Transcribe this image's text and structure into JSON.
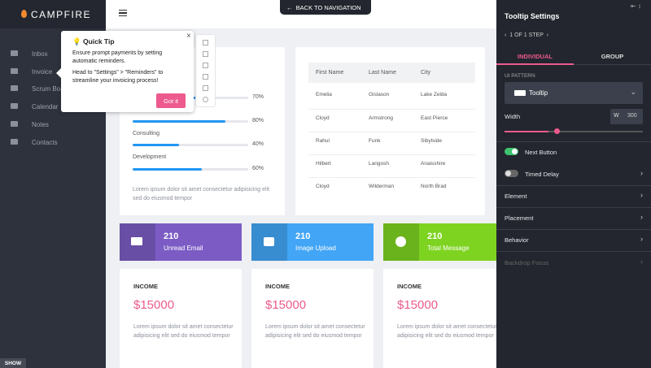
{
  "sidebar": {
    "brand": "CAMPFIRE",
    "menu": [
      "Inbox",
      "Invoice",
      "Scrum Board",
      "Calendar",
      "Notes",
      "Contacts"
    ],
    "show_button": "SHOW"
  },
  "header": {
    "back_button": "BACK TO NAVIGATION"
  },
  "skills": {
    "items": [
      {
        "value": 70,
        "value_label": "70%"
      },
      {
        "value": 80,
        "value_label": "80%"
      },
      {
        "label": "Consulting",
        "value": 40,
        "value_label": "40%"
      },
      {
        "label": "Development",
        "value": 60,
        "value_label": "60%"
      }
    ],
    "text": "Lorem ipsum dolor sit amet consectetur adipisicing elit sed do eiusmod tempor"
  },
  "table": {
    "columns": [
      "First Name",
      "Last Name",
      "City"
    ],
    "rows": [
      [
        "Emelia",
        "Gislason",
        "Lake Zelda"
      ],
      [
        "Cloyd",
        "Armstrong",
        "East Pierce"
      ],
      [
        "Rahul",
        "Funk",
        "Sibylside"
      ],
      [
        "Hilbert",
        "Langosh",
        "Anaisshire"
      ],
      [
        "Cloyd",
        "Wilderman",
        "North Brad"
      ]
    ]
  },
  "stats": [
    {
      "value": 210,
      "label": "Unread Email"
    },
    {
      "value": 210,
      "label": "Image Upload"
    },
    {
      "value": 210,
      "label": "Total Message"
    }
  ],
  "income_cards": [
    {
      "title": "INCOME",
      "amount": "$15000",
      "text": "Lorem ipsum dolor sit amet consectetur adipisicing elit sed do eiusmod tempor"
    },
    {
      "title": "INCOME",
      "amount": "$15000",
      "text": "Lorem ipsum dolor sit amet consectetur adipisicing elit sed do eiusmod tempor"
    },
    {
      "title": "INCOME",
      "amount": "$15000",
      "text": "Lorem ipsum dolor sit amet consectetur adipisicing elit sed do eiusmod tempor"
    }
  ],
  "tooltip": {
    "title": "Quick Tip",
    "lines": [
      "Ensure prompt payments by setting automatic reminders.",
      "Head to \"Settings\" > \"Reminders\" to streamline your invoicing process!"
    ],
    "button": "Got it"
  },
  "panel": {
    "title": "Tooltip Settings",
    "step": "1 OF 1 STEP",
    "tabs": [
      "INDIVIDUAL",
      "GROUP"
    ],
    "ui_pattern_label": "UI PATTERN",
    "ui_pattern": "Tooltip",
    "width_label": "Width",
    "width_unit": "W",
    "width_value": 300,
    "toggles": [
      "Next Button",
      "Timed Delay"
    ],
    "sections": [
      "Element",
      "Placement",
      "Behavior",
      "Backdrop Focus"
    ]
  }
}
